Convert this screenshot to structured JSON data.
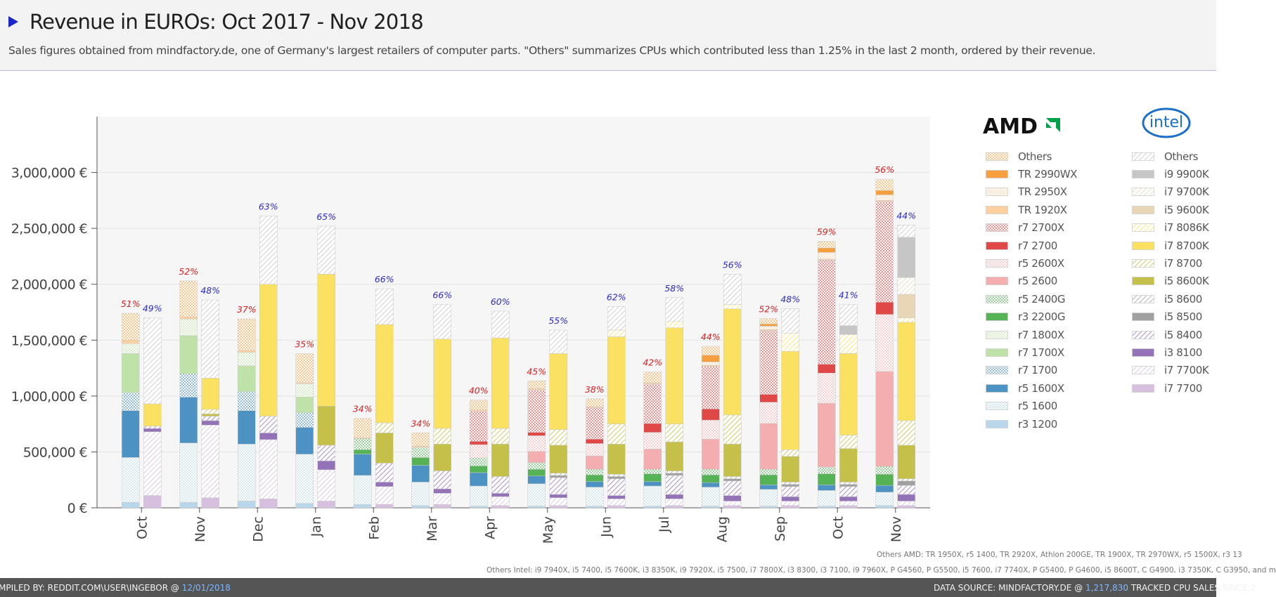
{
  "header": {
    "title": "Revenue in EUROs: Oct 2017 - Nov 2018",
    "subtitle": "Sales figures obtained from mindfactory.de, one of Germany's largest retailers of computer parts. \"Others\" summarizes CPUs which contributed less than 1.25% in the last 2 month, ordered by their revenue."
  },
  "brands": {
    "amd": "AMD",
    "intel": "intel"
  },
  "footnotes": {
    "amd": "Others AMD: TR 1950X, r5 1400, TR 2920X, Athlon 200GE, TR 1900X, TR 2970WX, r5 1500X, r3 13",
    "intel": "Others Intel: i9 7940X, i5 7400, i5 7600K, i3 8350K, i9 7920X, i5 7500, i7 7800X, i3 8300, i3 7100, i9 7960X, P G4560, P G5500, i5 7600, i7 7740X, P G5400, P G4600, i5 8600T, C G4900, i3 7350K, C G3950, and m"
  },
  "footer": {
    "left_text": "MPILED BY: REDDIT.COM\\USER\\INGEBOR @ ",
    "left_date": "12/01/2018",
    "right_text": "DATA SOURCE: MINDFACTORY.DE @ ",
    "right_count": "1,217,830",
    "right_tail": " TRACKED CPU SALES SINCE 2"
  },
  "colors": {
    "amd_pct": "#d62020",
    "intel_pct": "#2b2bc6"
  },
  "chart_data": {
    "type": "bar",
    "stacked": true,
    "grouped_by_vendor": true,
    "categories": [
      "Oct",
      "Nov",
      "Dec",
      "Jan",
      "Feb",
      "Mar",
      "Apr",
      "May",
      "Jun",
      "Jul",
      "Aug",
      "Sep",
      "Oct",
      "Nov"
    ],
    "ylim": [
      0,
      3500000
    ],
    "yticks": [
      0,
      500000,
      1000000,
      1500000,
      2000000,
      2500000,
      3000000
    ],
    "ytick_labels": [
      "0 €",
      "500,000 €",
      "1,000,000 €",
      "1,500,000 €",
      "2,000,000 €",
      "2,500,000 €",
      "3,000,000 €"
    ],
    "grid": true,
    "legend_position": "right",
    "amd_pct_labels": [
      "51%",
      "52%",
      "37%",
      "35%",
      "34%",
      "34%",
      "40%",
      "45%",
      "38%",
      "42%",
      "44%",
      "52%",
      "59%",
      "56%"
    ],
    "intel_pct_labels": [
      "49%",
      "48%",
      "63%",
      "65%",
      "66%",
      "66%",
      "60%",
      "55%",
      "62%",
      "58%",
      "56%",
      "48%",
      "41%",
      "44%"
    ],
    "amd_series": [
      {
        "name": "r3 1200",
        "color": "#b9d7ea",
        "pattern": "solid",
        "values": [
          50000,
          50000,
          60000,
          40000,
          30000,
          20000,
          15000,
          15000,
          15000,
          15000,
          15000,
          15000,
          15000,
          20000
        ]
      },
      {
        "name": "r5 1600",
        "color": "#b9d7ea",
        "pattern": "dots",
        "values": [
          400000,
          530000,
          510000,
          440000,
          260000,
          210000,
          180000,
          200000,
          170000,
          180000,
          170000,
          150000,
          140000,
          120000
        ]
      },
      {
        "name": "r5 1600X",
        "color": "#4c92c3",
        "pattern": "solid",
        "values": [
          420000,
          410000,
          300000,
          240000,
          190000,
          150000,
          120000,
          70000,
          50000,
          40000,
          40000,
          40000,
          50000,
          60000
        ]
      },
      {
        "name": "r7 1700",
        "color": "#4c92c3",
        "pattern": "dots",
        "values": [
          160000,
          210000,
          170000,
          130000,
          0,
          0,
          0,
          0,
          0,
          0,
          0,
          0,
          0,
          0
        ]
      },
      {
        "name": "r7 1700X",
        "color": "#bfe2a8",
        "pattern": "solid",
        "values": [
          350000,
          340000,
          230000,
          140000,
          0,
          0,
          0,
          0,
          0,
          0,
          0,
          0,
          0,
          0
        ]
      },
      {
        "name": "r7 1800X",
        "color": "#bfe2a8",
        "pattern": "dots",
        "values": [
          90000,
          150000,
          120000,
          120000,
          0,
          0,
          0,
          0,
          0,
          0,
          0,
          0,
          0,
          0
        ]
      },
      {
        "name": "r3 2200G",
        "color": "#55b355",
        "pattern": "solid",
        "values": [
          0,
          0,
          0,
          0,
          40000,
          70000,
          60000,
          60000,
          60000,
          70000,
          70000,
          90000,
          100000,
          100000
        ]
      },
      {
        "name": "r5 2400G",
        "color": "#55b355",
        "pattern": "dots",
        "values": [
          0,
          0,
          0,
          0,
          100000,
          90000,
          70000,
          60000,
          50000,
          40000,
          50000,
          50000,
          60000,
          70000
        ]
      },
      {
        "name": "r5 2600",
        "color": "#f4aeb0",
        "pattern": "solid",
        "values": [
          0,
          0,
          0,
          0,
          0,
          0,
          0,
          100000,
          120000,
          180000,
          270000,
          410000,
          570000,
          850000
        ]
      },
      {
        "name": "r5 2600X",
        "color": "#f4aeb0",
        "pattern": "dots",
        "values": [
          0,
          0,
          0,
          0,
          0,
          0,
          120000,
          140000,
          110000,
          150000,
          170000,
          190000,
          270000,
          510000
        ]
      },
      {
        "name": "r7 2700",
        "color": "#e04848",
        "pattern": "solid",
        "values": [
          0,
          0,
          0,
          0,
          0,
          0,
          30000,
          30000,
          40000,
          80000,
          100000,
          70000,
          80000,
          110000
        ]
      },
      {
        "name": "r7 2700X",
        "color": "#e04848",
        "pattern": "dots",
        "values": [
          0,
          0,
          0,
          0,
          0,
          0,
          270000,
          380000,
          280000,
          350000,
          380000,
          570000,
          930000,
          900000
        ]
      },
      {
        "name": "TR 1920X",
        "color": "#fdd0a0",
        "pattern": "solid",
        "values": [
          30000,
          20000,
          20000,
          10000,
          10000,
          10000,
          10000,
          10000,
          10000,
          10000,
          10000,
          10000,
          10000,
          10000
        ]
      },
      {
        "name": "TR 2950X",
        "color": "#fdd0a0",
        "pattern": "dots",
        "values": [
          0,
          0,
          0,
          0,
          0,
          0,
          0,
          0,
          0,
          0,
          30000,
          30000,
          60000,
          50000
        ]
      },
      {
        "name": "TR 2990WX",
        "color": "#f69f3e",
        "pattern": "solid",
        "values": [
          0,
          0,
          0,
          0,
          0,
          0,
          0,
          0,
          0,
          0,
          60000,
          20000,
          40000,
          40000
        ]
      },
      {
        "name": "Others",
        "color": "#f69f3e",
        "pattern": "dots",
        "values": [
          240000,
          320000,
          280000,
          260000,
          170000,
          120000,
          90000,
          70000,
          70000,
          100000,
          80000,
          50000,
          60000,
          100000
        ]
      }
    ],
    "intel_series": [
      {
        "name": "i7 7700",
        "color": "#d6bfdf",
        "pattern": "solid",
        "values": [
          110000,
          90000,
          80000,
          60000,
          30000,
          30000,
          20000,
          20000,
          20000,
          20000,
          20000,
          20000,
          20000,
          20000
        ]
      },
      {
        "name": "i7 7700K",
        "color": "#d6bfdf",
        "pattern": "hatch",
        "values": [
          570000,
          650000,
          530000,
          280000,
          160000,
          100000,
          80000,
          70000,
          60000,
          60000,
          40000,
          40000,
          40000,
          40000
        ]
      },
      {
        "name": "i3 8100",
        "color": "#9472b8",
        "pattern": "solid",
        "values": [
          30000,
          40000,
          60000,
          80000,
          40000,
          40000,
          30000,
          30000,
          30000,
          40000,
          50000,
          40000,
          40000,
          60000
        ]
      },
      {
        "name": "i5 8400",
        "color": "#9472b8",
        "pattern": "hatch",
        "values": [
          20000,
          40000,
          150000,
          140000,
          170000,
          160000,
          150000,
          150000,
          150000,
          170000,
          130000,
          90000,
          90000,
          80000
        ]
      },
      {
        "name": "i5 8500",
        "color": "#a0a0a0",
        "pattern": "solid",
        "values": [
          0,
          0,
          0,
          0,
          0,
          0,
          0,
          20000,
          20000,
          20000,
          20000,
          20000,
          20000,
          40000
        ]
      },
      {
        "name": "i5 8600",
        "color": "#a0a0a0",
        "pattern": "hatch",
        "values": [
          0,
          0,
          0,
          0,
          0,
          0,
          0,
          20000,
          20000,
          20000,
          20000,
          20000,
          20000,
          20000
        ]
      },
      {
        "name": "i5 8600K",
        "color": "#c4c04a",
        "pattern": "solid",
        "values": [
          0,
          20000,
          0,
          350000,
          270000,
          240000,
          290000,
          250000,
          270000,
          260000,
          290000,
          230000,
          300000,
          300000
        ]
      },
      {
        "name": "i7 8700",
        "color": "#c4c04a",
        "pattern": "hatch",
        "values": [
          0,
          40000,
          0,
          0,
          90000,
          140000,
          140000,
          140000,
          180000,
          160000,
          260000,
          60000,
          120000,
          220000
        ]
      },
      {
        "name": "i7 8700K",
        "color": "#fbe162",
        "pattern": "solid",
        "values": [
          200000,
          280000,
          1180000,
          1180000,
          880000,
          800000,
          810000,
          680000,
          780000,
          860000,
          950000,
          880000,
          730000,
          880000
        ]
      },
      {
        "name": "i7 8086K",
        "color": "#fbe162",
        "pattern": "hatch",
        "values": [
          0,
          0,
          0,
          0,
          0,
          0,
          0,
          0,
          60000,
          60000,
          40000,
          160000,
          170000,
          40000
        ]
      },
      {
        "name": "i5 9600K",
        "color": "#e8d6b7",
        "pattern": "solid",
        "values": [
          0,
          0,
          0,
          0,
          0,
          0,
          0,
          0,
          0,
          0,
          0,
          0,
          0,
          210000
        ]
      },
      {
        "name": "i7 9700K",
        "color": "#e8d6b7",
        "pattern": "hatch",
        "values": [
          0,
          0,
          0,
          0,
          0,
          0,
          0,
          0,
          0,
          0,
          0,
          0,
          0,
          150000
        ]
      },
      {
        "name": "i9 9900K",
        "color": "#c6c6c6",
        "pattern": "solid",
        "values": [
          0,
          0,
          0,
          0,
          0,
          0,
          0,
          0,
          0,
          0,
          0,
          0,
          80000,
          360000
        ]
      },
      {
        "name": "Others",
        "color": "#c6c6c6",
        "pattern": "hatch",
        "values": [
          770000,
          700000,
          610000,
          430000,
          320000,
          310000,
          240000,
          210000,
          210000,
          210000,
          270000,
          220000,
          190000,
          110000
        ]
      }
    ]
  }
}
